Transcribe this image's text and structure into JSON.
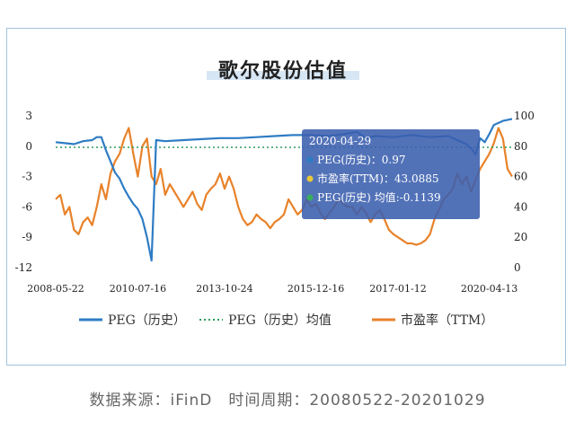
{
  "chart_data": {
    "type": "line",
    "title": "歌尔股份估值",
    "x_ticks": [
      "2008-05-22",
      "2010-07-16",
      "2013-10-24",
      "2015-12-16",
      "2017-01-12",
      "2020-04-13"
    ],
    "y_left": {
      "ticks": [
        "3",
        "0",
        "-3",
        "-6",
        "-9",
        "-12"
      ],
      "range": [
        -12,
        3
      ]
    },
    "y_right": {
      "ticks": [
        "100",
        "80",
        "60",
        "40",
        "20",
        "0"
      ],
      "range": [
        0,
        100
      ]
    },
    "series": [
      {
        "name": "PEG（历史）",
        "axis": "left",
        "color": "#2e7cc4",
        "values": [
          [
            0,
            0.4
          ],
          [
            2,
            0.3
          ],
          [
            4,
            0.2
          ],
          [
            6,
            0.5
          ],
          [
            8,
            0.6
          ],
          [
            9,
            0.9
          ],
          [
            10,
            0.9
          ],
          [
            11,
            -0.4
          ],
          [
            12,
            -1.5
          ],
          [
            13,
            -2.6
          ],
          [
            14,
            -3.2
          ],
          [
            15,
            -4.2
          ],
          [
            16,
            -5.0
          ],
          [
            17,
            -5.7
          ],
          [
            18,
            -6.2
          ],
          [
            19,
            -7.2
          ],
          [
            20,
            -9.0
          ],
          [
            21,
            -11.3
          ],
          [
            22,
            0.6
          ],
          [
            24,
            0.5
          ],
          [
            28,
            0.6
          ],
          [
            32,
            0.7
          ],
          [
            36,
            0.8
          ],
          [
            40,
            0.8
          ],
          [
            44,
            0.9
          ],
          [
            48,
            1.0
          ],
          [
            52,
            1.1
          ],
          [
            56,
            1.1
          ],
          [
            60,
            1.0
          ],
          [
            63,
            1.2
          ],
          [
            66,
            1.4
          ],
          [
            68,
            0.8
          ],
          [
            70,
            1.0
          ],
          [
            74,
            0.9
          ],
          [
            78,
            1.1
          ],
          [
            82,
            0.9
          ],
          [
            86,
            1.0
          ],
          [
            88,
            0.6
          ],
          [
            90,
            0.2
          ],
          [
            91,
            -0.2
          ],
          [
            92,
            -0.8
          ],
          [
            93,
            0.8
          ],
          [
            94,
            0.4
          ],
          [
            95,
            1.2
          ],
          [
            96,
            2.1
          ],
          [
            97,
            2.3
          ],
          [
            98,
            2.5
          ],
          [
            100,
            2.7
          ]
        ]
      },
      {
        "name": "PEG（历史）均值",
        "axis": "left",
        "color": "#2e9c5c",
        "dashed": true,
        "values": [
          [
            0,
            -0.11
          ],
          [
            100,
            -0.11
          ]
        ]
      },
      {
        "name": "市盈率（TTM）",
        "axis": "right",
        "color": "#e8822a",
        "values": [
          [
            0,
            45
          ],
          [
            1,
            48
          ],
          [
            2,
            35
          ],
          [
            3,
            40
          ],
          [
            4,
            25
          ],
          [
            5,
            22
          ],
          [
            6,
            30
          ],
          [
            7,
            33
          ],
          [
            8,
            28
          ],
          [
            9,
            40
          ],
          [
            10,
            55
          ],
          [
            11,
            45
          ],
          [
            12,
            62
          ],
          [
            13,
            70
          ],
          [
            14,
            75
          ],
          [
            15,
            85
          ],
          [
            16,
            92
          ],
          [
            17,
            75
          ],
          [
            18,
            60
          ],
          [
            19,
            80
          ],
          [
            20,
            85
          ],
          [
            21,
            60
          ],
          [
            22,
            55
          ],
          [
            23,
            65
          ],
          [
            24,
            48
          ],
          [
            25,
            55
          ],
          [
            26,
            50
          ],
          [
            27,
            45
          ],
          [
            28,
            40
          ],
          [
            29,
            45
          ],
          [
            30,
            50
          ],
          [
            31,
            42
          ],
          [
            32,
            38
          ],
          [
            33,
            48
          ],
          [
            34,
            52
          ],
          [
            35,
            55
          ],
          [
            36,
            62
          ],
          [
            37,
            52
          ],
          [
            38,
            60
          ],
          [
            39,
            52
          ],
          [
            40,
            40
          ],
          [
            41,
            32
          ],
          [
            42,
            28
          ],
          [
            43,
            30
          ],
          [
            44,
            35
          ],
          [
            45,
            32
          ],
          [
            46,
            30
          ],
          [
            47,
            26
          ],
          [
            48,
            30
          ],
          [
            49,
            32
          ],
          [
            50,
            35
          ],
          [
            51,
            45
          ],
          [
            52,
            40
          ],
          [
            53,
            35
          ],
          [
            54,
            38
          ],
          [
            55,
            45
          ],
          [
            56,
            40
          ],
          [
            57,
            42
          ],
          [
            58,
            36
          ],
          [
            59,
            32
          ],
          [
            60,
            36
          ],
          [
            61,
            40
          ],
          [
            62,
            45
          ],
          [
            63,
            42
          ],
          [
            64,
            40
          ],
          [
            65,
            40
          ],
          [
            66,
            35
          ],
          [
            67,
            40
          ],
          [
            68,
            36
          ],
          [
            69,
            30
          ],
          [
            70,
            35
          ],
          [
            71,
            38
          ],
          [
            72,
            32
          ],
          [
            73,
            25
          ],
          [
            74,
            22
          ],
          [
            75,
            20
          ],
          [
            76,
            18
          ],
          [
            77,
            16
          ],
          [
            78,
            16
          ],
          [
            79,
            15
          ],
          [
            80,
            16
          ],
          [
            81,
            18
          ],
          [
            82,
            22
          ],
          [
            83,
            32
          ],
          [
            84,
            38
          ],
          [
            85,
            45
          ],
          [
            86,
            48
          ],
          [
            87,
            52
          ],
          [
            88,
            62
          ],
          [
            89,
            55
          ],
          [
            90,
            60
          ],
          [
            91,
            50
          ],
          [
            92,
            58
          ],
          [
            93,
            65
          ],
          [
            94,
            70
          ],
          [
            95,
            75
          ],
          [
            96,
            82
          ],
          [
            97,
            92
          ],
          [
            98,
            85
          ],
          [
            99,
            65
          ],
          [
            100,
            60
          ]
        ]
      }
    ],
    "tooltip": {
      "date": "2020-04-29",
      "lines": [
        {
          "label": "PEG(历史)：0.97",
          "color": "#2e7cc4"
        },
        {
          "label": "市盈率(TTM)：43.0885",
          "color": "#e8c838"
        },
        {
          "label": "PEG(历史) 均值:-0.1139",
          "color": "#3aae5e"
        }
      ]
    },
    "legend_position": "bottom"
  },
  "footer": "数据来源：iFinD　时间周期：20080522-20201029"
}
